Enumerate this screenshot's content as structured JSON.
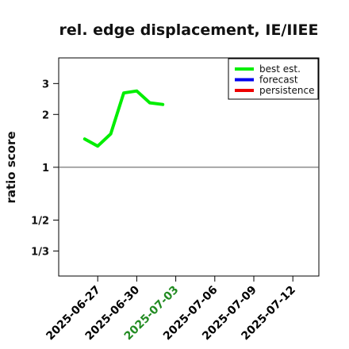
{
  "chart_data": {
    "type": "line",
    "title": "rel. edge displacement, IE/IIEE",
    "ylabel": "ratio score",
    "xlabel": "",
    "y_scale": "log",
    "ylim": [
      0.24,
      4.2
    ],
    "xlim": [
      "2025-06-24",
      "2025-07-14"
    ],
    "x_ticks": [
      "2025-06-27",
      "2025-06-30",
      "2025-07-03",
      "2025-07-06",
      "2025-07-09",
      "2025-07-12"
    ],
    "x_tick_colors": [
      "#000000",
      "#000000",
      "#228b22",
      "#000000",
      "#000000",
      "#000000"
    ],
    "y_ticks": [
      {
        "value": 3,
        "label": "3"
      },
      {
        "value": 2,
        "label": "2"
      },
      {
        "value": 1,
        "label": "1"
      },
      {
        "value": 0.5,
        "label": "1/2"
      },
      {
        "value": 0.3333,
        "label": "1/3"
      }
    ],
    "reference_line": 1,
    "grid": false,
    "legend": {
      "placement": "top-right",
      "entries": [
        {
          "label": "best est.",
          "color": "#00ee00"
        },
        {
          "label": "forecast",
          "color": "#0000ee"
        },
        {
          "label": "persistence",
          "color": "#ee0000"
        }
      ]
    },
    "series": [
      {
        "name": "best est.",
        "color": "#00ee00",
        "x": [
          "2025-06-26",
          "2025-06-27",
          "2025-06-28",
          "2025-06-29",
          "2025-06-30",
          "2025-07-01",
          "2025-07-02"
        ],
        "y": [
          1.45,
          1.32,
          1.55,
          2.65,
          2.72,
          2.33,
          2.28
        ]
      },
      {
        "name": "forecast",
        "color": "#0000ee",
        "x": [],
        "y": []
      },
      {
        "name": "persistence",
        "color": "#ee0000",
        "x": [],
        "y": []
      }
    ]
  }
}
